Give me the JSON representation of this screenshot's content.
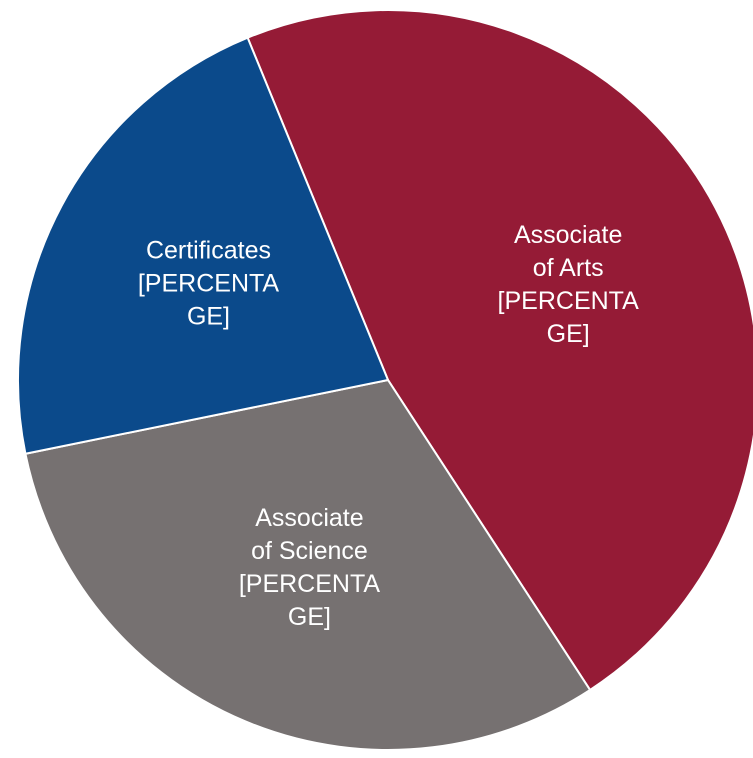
{
  "chart_data": {
    "type": "pie",
    "categories": [
      "Associate of Arts",
      "Associate of Science",
      "Certificates"
    ],
    "values": [
      47,
      31,
      22
    ],
    "value_labels": [
      "[PERCENTAGE]",
      "[PERCENTAGE]",
      "[PERCENTAGE]"
    ],
    "colors": [
      "#951b36",
      "#767171",
      "#0b4a8b"
    ]
  }
}
